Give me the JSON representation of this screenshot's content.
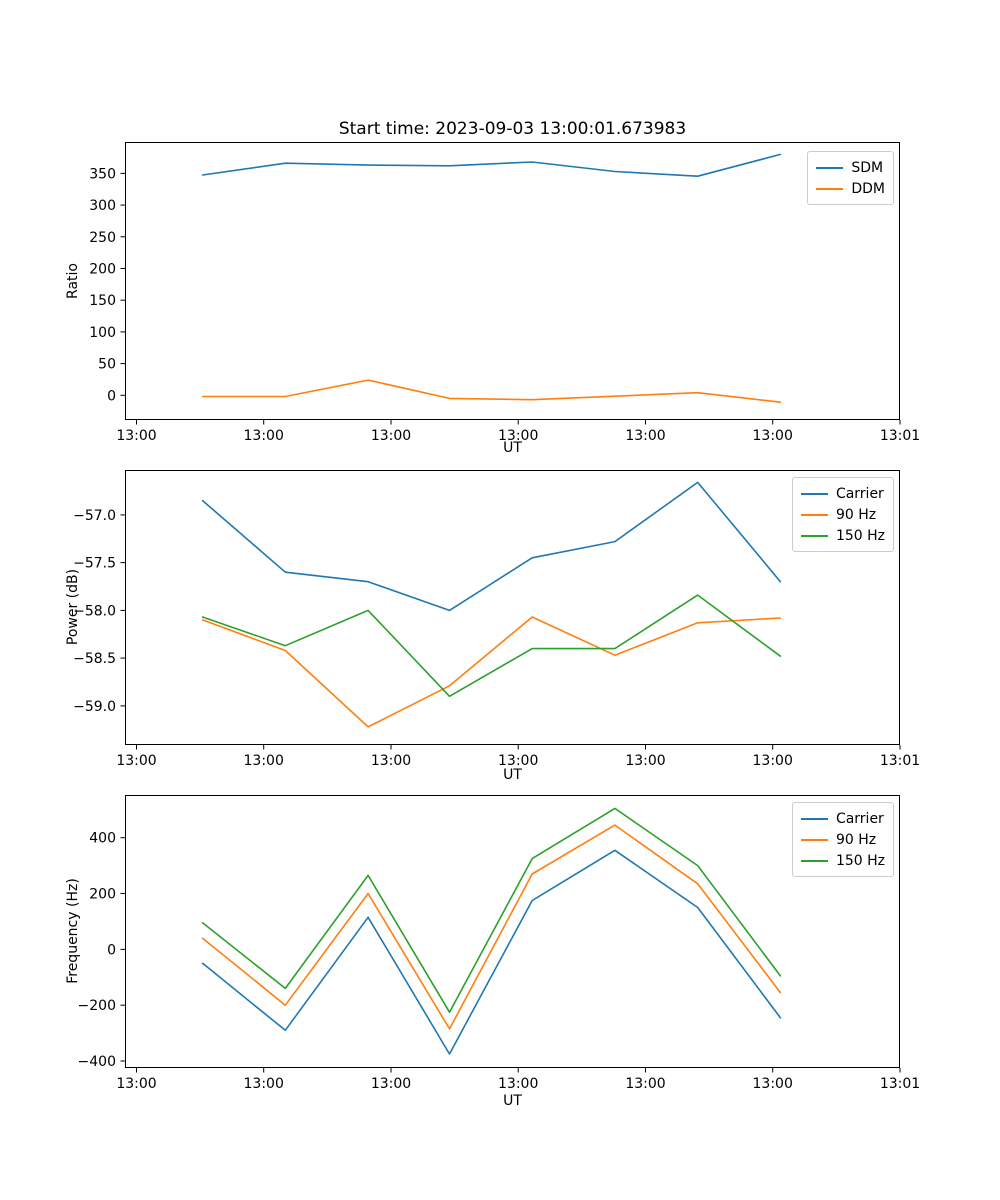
{
  "figure_title": "Start time: 2023-09-03 13:00:01.673983",
  "colors": {
    "blue": "#1f77b4",
    "orange": "#ff7f0e",
    "green": "#2ca02c",
    "axis": "#000000",
    "legend_border": "#cccccc",
    "background": "#ffffff"
  },
  "chart_data": [
    {
      "type": "line",
      "title": "Start time: 2023-09-03 13:00:01.673983",
      "ylabel": "Ratio",
      "xlabel": "UT",
      "x_unit": "seconds after 13:00:00 UT",
      "x": [
        5.2,
        11.7,
        18.2,
        24.6,
        31.1,
        37.6,
        44.1,
        50.6
      ],
      "xlim": [
        -0.9,
        60
      ],
      "ylim": [
        -39,
        399.5
      ],
      "x_tick_values": [
        0,
        10,
        20,
        30,
        40,
        50,
        60
      ],
      "x_tick_labels": [
        "13:00",
        "13:00",
        "13:00",
        "13:00",
        "13:00",
        "13:00",
        "13:01"
      ],
      "ytick_values": [
        0,
        50,
        100,
        150,
        200,
        250,
        300,
        350
      ],
      "ytick_labels": [
        "0",
        "50",
        "100",
        "150",
        "200",
        "250",
        "300",
        "350"
      ],
      "legend_position": "upper right",
      "grid": false,
      "series": [
        {
          "name": "SDM",
          "color": "#1f77b4",
          "values": [
            347.5,
            366,
            363,
            362,
            368,
            353,
            345.5,
            380
          ]
        },
        {
          "name": "DDM",
          "color": "#ff7f0e",
          "values": [
            -2,
            -2,
            24,
            -5,
            -7,
            -1.5,
            4,
            -11
          ]
        }
      ]
    },
    {
      "type": "line",
      "title": "",
      "ylabel": "Power (dB)",
      "xlabel": "UT",
      "x_unit": "seconds after 13:00:00 UT",
      "x": [
        5.2,
        11.7,
        18.2,
        24.6,
        31.1,
        37.6,
        44.1,
        50.6
      ],
      "xlim": [
        -0.9,
        60
      ],
      "ylim": [
        -59.41,
        -56.53
      ],
      "x_tick_values": [
        0,
        10,
        20,
        30,
        40,
        50,
        60
      ],
      "x_tick_labels": [
        "13:00",
        "13:00",
        "13:00",
        "13:00",
        "13:00",
        "13:00",
        "13:01"
      ],
      "ytick_values": [
        -59.0,
        -58.5,
        -58.0,
        -57.5,
        -57.0
      ],
      "ytick_labels": [
        "−59.0",
        "−58.5",
        "−58.0",
        "−57.5",
        "−57.0"
      ],
      "legend_position": "upper right",
      "grid": false,
      "series": [
        {
          "name": "Carrier",
          "color": "#1f77b4",
          "values": [
            -56.85,
            -57.6,
            -57.7,
            -58.0,
            -57.45,
            -57.28,
            -56.66,
            -57.7
          ]
        },
        {
          "name": "90 Hz",
          "color": "#ff7f0e",
          "values": [
            -58.1,
            -58.42,
            -59.22,
            -58.79,
            -58.07,
            -58.47,
            -58.13,
            -58.08
          ]
        },
        {
          "name": "150 Hz",
          "color": "#2ca02c",
          "values": [
            -58.07,
            -58.37,
            -58.0,
            -58.9,
            -58.4,
            -58.4,
            -57.84,
            -58.48
          ]
        }
      ]
    },
    {
      "type": "line",
      "title": "",
      "ylabel": "Frequency (Hz)",
      "xlabel": "UT",
      "x_unit": "seconds after 13:00:00 UT",
      "x": [
        5.2,
        11.7,
        18.2,
        24.6,
        31.1,
        37.6,
        44.1,
        50.6
      ],
      "xlim": [
        -0.9,
        60
      ],
      "ylim": [
        -425,
        553
      ],
      "x_tick_values": [
        0,
        10,
        20,
        30,
        40,
        50,
        60
      ],
      "x_tick_labels": [
        "13:00",
        "13:00",
        "13:00",
        "13:00",
        "13:00",
        "13:00",
        "13:01"
      ],
      "ytick_values": [
        -400,
        -200,
        0,
        200,
        400
      ],
      "ytick_labels": [
        "−400",
        "−200",
        "0",
        "200",
        "400"
      ],
      "legend_position": "upper right",
      "grid": false,
      "series": [
        {
          "name": "Carrier",
          "color": "#1f77b4",
          "values": [
            -50,
            -290,
            115,
            -375,
            175,
            355,
            150,
            -245
          ]
        },
        {
          "name": "90 Hz",
          "color": "#ff7f0e",
          "values": [
            40,
            -200,
            200,
            -285,
            270,
            445,
            235,
            -155
          ]
        },
        {
          "name": "150 Hz",
          "color": "#2ca02c",
          "values": [
            95,
            -140,
            265,
            -225,
            325,
            505,
            300,
            -95
          ]
        }
      ]
    }
  ]
}
